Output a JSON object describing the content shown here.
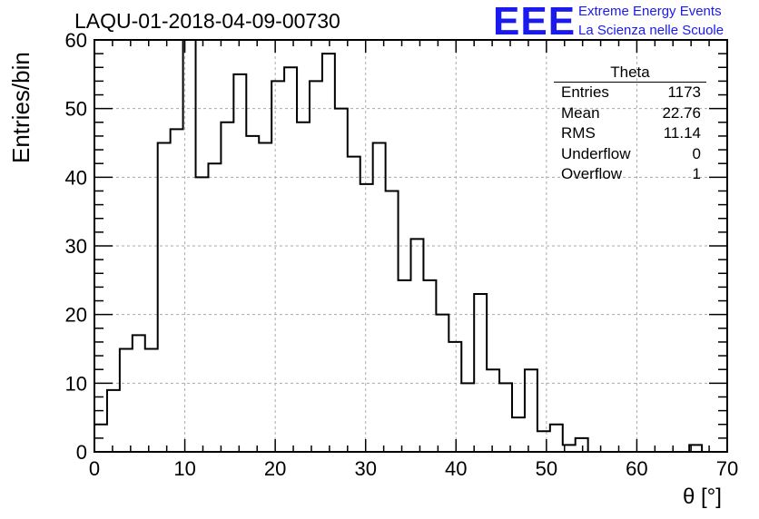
{
  "header": {
    "title": "LAQU-01-2018-04-09-00730"
  },
  "logo": {
    "mark": "EEE",
    "line1": "Extreme Energy Events",
    "line2": "La Scienza nelle Scuole"
  },
  "stats_box": {
    "title": "Theta",
    "rows": [
      {
        "label": "Entries",
        "value": "1173"
      },
      {
        "label": "Mean",
        "value": "22.76"
      },
      {
        "label": "RMS",
        "value": "11.14"
      },
      {
        "label": "Underflow",
        "value": "0"
      },
      {
        "label": "Overflow",
        "value": "1"
      }
    ]
  },
  "colors": {
    "line": "#000000",
    "grid": "#aaaaaa",
    "logo": "#1a1aee"
  },
  "chart_data": {
    "type": "histogram",
    "title": "LAQU-01-2018-04-09-00730",
    "xlabel": "θ [°]",
    "ylabel": "Entries/bin",
    "xlim": [
      0,
      70
    ],
    "ylim": [
      0,
      60
    ],
    "bin_width": 1.4,
    "grid": true,
    "xticks": [
      0,
      10,
      20,
      30,
      40,
      50,
      60,
      70
    ],
    "yticks": [
      0,
      10,
      20,
      30,
      40,
      50,
      60
    ],
    "values": [
      4,
      9,
      15,
      17,
      15,
      45,
      47,
      60,
      40,
      42,
      48,
      55,
      46,
      45,
      54,
      56,
      48,
      54,
      58,
      50,
      43,
      39,
      45,
      38,
      25,
      31,
      25,
      20,
      16,
      10,
      23,
      12,
      10,
      5,
      12,
      3,
      4,
      1,
      2,
      0,
      0,
      0,
      0,
      0,
      0,
      0,
      0,
      1,
      0,
      0
    ]
  }
}
